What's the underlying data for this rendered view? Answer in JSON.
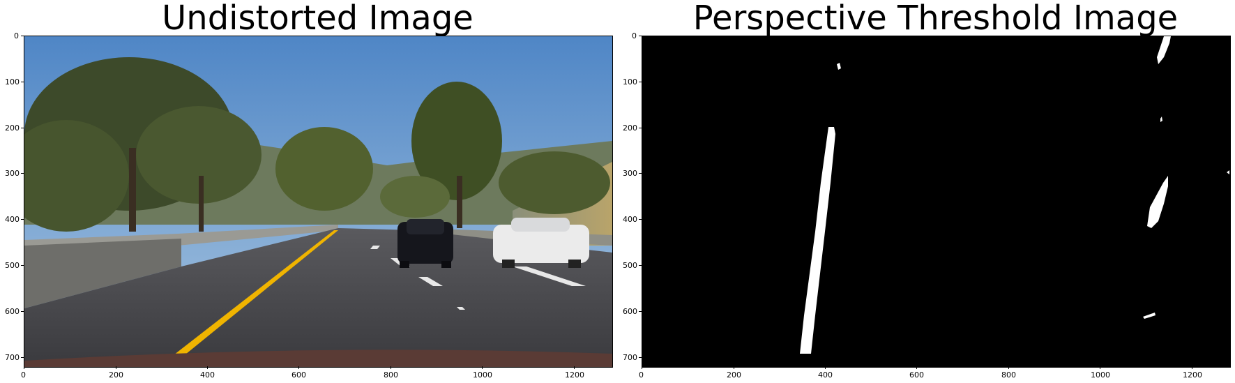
{
  "panels": [
    {
      "title": "Undistorted Image",
      "x_ticks": [
        "0",
        "200",
        "400",
        "600",
        "800",
        "1000",
        "1200"
      ],
      "y_ticks": [
        "0",
        "100",
        "200",
        "300",
        "400",
        "500",
        "600",
        "700"
      ],
      "x_range": [
        0,
        1280
      ],
      "y_range": [
        0,
        720
      ]
    },
    {
      "title": "Perspective Threshold Image",
      "x_ticks": [
        "0",
        "200",
        "400",
        "600",
        "800",
        "1000",
        "1200"
      ],
      "y_ticks": [
        "0",
        "100",
        "200",
        "300",
        "400",
        "500",
        "600",
        "700"
      ],
      "x_range": [
        0,
        1280
      ],
      "y_range": [
        0,
        720
      ]
    }
  ],
  "colors": {
    "sky": "#5f8fc4",
    "road": "#3f3f44",
    "lane_yellow": "#f0b400",
    "threshold_bg": "#000000",
    "threshold_fg": "#ffffff"
  }
}
